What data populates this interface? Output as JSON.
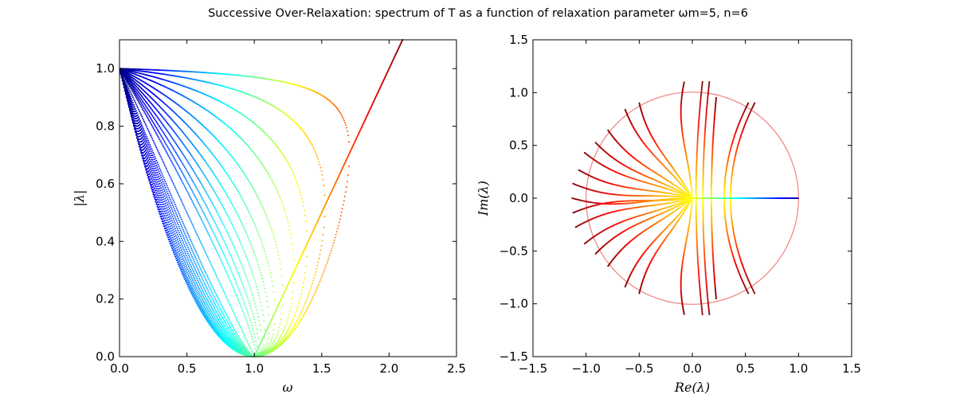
{
  "figure": {
    "title": "Successive Over-Relaxation: spectrum of T as a function of relaxation parameter ωm=5, n=6"
  },
  "chart_data": [
    {
      "type": "scatter",
      "xlabel": "ω",
      "ylabel": "|λ|",
      "xlim": [
        0.0,
        2.5
      ],
      "ylim": [
        0.0,
        1.1
      ],
      "xticks": [
        "0.0",
        "0.5",
        "1.0",
        "1.5",
        "2.0",
        "2.5"
      ],
      "yticks": [
        "0.0",
        "0.2",
        "0.4",
        "0.6",
        "0.8",
        "1.0"
      ],
      "colormap": "jet",
      "branches": {
        "omega_opt": 1.0,
        "jacobi_moduli": [
          0.2,
          0.28,
          0.36,
          0.44,
          0.52,
          0.6,
          0.68,
          0.76,
          0.84,
          0.9,
          0.95,
          0.985
        ],
        "envelope": {
          "x": [
            1.0,
            2.1
          ],
          "y": [
            0.0,
            1.1
          ]
        }
      }
    },
    {
      "type": "scatter",
      "xlabel": "Re(λ)",
      "ylabel": "Im(λ)",
      "xlim": [
        -1.5,
        1.5
      ],
      "ylim": [
        -1.5,
        1.5
      ],
      "xticks": [
        "−1.5",
        "−1.0",
        "−0.5",
        "0.0",
        "0.5",
        "1.0",
        "1.5"
      ],
      "yticks": [
        "−1.5",
        "−1.0",
        "−0.5",
        "0.0",
        "0.5",
        "1.0",
        "1.5"
      ],
      "colormap": "jet",
      "unit_circle": {
        "radius": 1.0,
        "color": "#f08080"
      },
      "real_segment": {
        "from": 0.0,
        "to": 1.0
      },
      "spokes": [
        {
          "angle_deg": 180,
          "r": 1.13
        },
        {
          "angle_deg": 173,
          "r": 1.13
        },
        {
          "angle_deg": 166,
          "r": 1.1
        },
        {
          "angle_deg": 157,
          "r": 1.1
        },
        {
          "angle_deg": 150,
          "r": 1.05
        },
        {
          "angle_deg": 141,
          "r": 1.02
        },
        {
          "angle_deg": 127,
          "r": 1.05
        },
        {
          "angle_deg": 119,
          "r": 1.03
        },
        {
          "angle_deg": 94,
          "r": 1.1
        },
        {
          "angle_deg": 187,
          "r": 1.13
        },
        {
          "angle_deg": 194,
          "r": 1.13
        },
        {
          "angle_deg": 203,
          "r": 1.1
        },
        {
          "angle_deg": 210,
          "r": 1.05
        },
        {
          "angle_deg": 219,
          "r": 1.02
        },
        {
          "angle_deg": 233,
          "r": 1.05
        },
        {
          "angle_deg": 241,
          "r": 1.03
        },
        {
          "angle_deg": 266,
          "r": 1.1
        }
      ],
      "arcs": [
        {
          "c": 0.035,
          "y_top": 1.1
        },
        {
          "c": 0.1,
          "y_top": 1.1
        },
        {
          "c": 0.18,
          "y_top": 0.95
        },
        {
          "c": 0.3,
          "y_top": 0.9
        },
        {
          "c": 0.36,
          "y_top": 0.9
        }
      ]
    }
  ]
}
